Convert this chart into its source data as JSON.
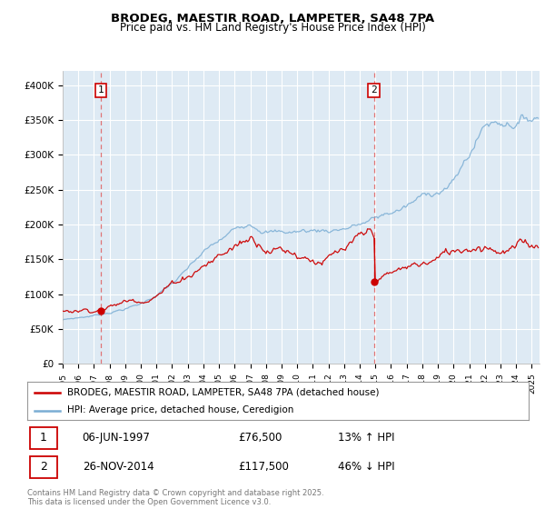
{
  "title": "BRODEG, MAESTIR ROAD, LAMPETER, SA48 7PA",
  "subtitle": "Price paid vs. HM Land Registry's House Price Index (HPI)",
  "ylim": [
    0,
    420000
  ],
  "yticks": [
    0,
    50000,
    100000,
    150000,
    200000,
    250000,
    300000,
    350000,
    400000
  ],
  "ytick_labels": [
    "£0",
    "£50K",
    "£100K",
    "£150K",
    "£200K",
    "£250K",
    "£300K",
    "£350K",
    "£400K"
  ],
  "red_color": "#cc0000",
  "blue_color": "#7aadd4",
  "dashed_color": "#e06060",
  "plot_bg_color": "#deeaf4",
  "legend_label_red": "BRODEG, MAESTIR ROAD, LAMPETER, SA48 7PA (detached house)",
  "legend_label_blue": "HPI: Average price, detached house, Ceredigion",
  "annotation1_date": "06-JUN-1997",
  "annotation1_price": "£76,500",
  "annotation1_hpi": "13% ↑ HPI",
  "annotation2_date": "26-NOV-2014",
  "annotation2_price": "£117,500",
  "annotation2_hpi": "46% ↓ HPI",
  "copyright": "Contains HM Land Registry data © Crown copyright and database right 2025.\nThis data is licensed under the Open Government Licence v3.0.",
  "sale1_year": 1997.43,
  "sale1_price": 76500,
  "sale2_year": 2014.9,
  "sale2_price": 117500
}
